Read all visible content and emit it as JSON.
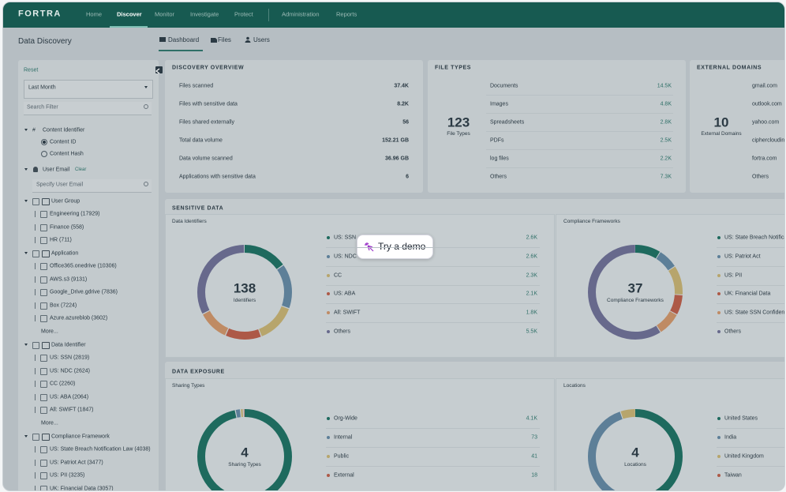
{
  "nav": {
    "brand": "FORTRA",
    "items": [
      "Home",
      "Discover",
      "Monitor",
      "Investigate",
      "Protect",
      "Administration",
      "Reports"
    ]
  },
  "page_title": "Data Discovery",
  "tabs": [
    "Dashboard",
    "Files",
    "Users"
  ],
  "sidebar": {
    "reset": "Reset",
    "period": "Last Month",
    "search_placeholder": "Search Filter",
    "content_identifier": {
      "title": "Content Identifier",
      "options": [
        "Content ID",
        "Content Hash"
      ]
    },
    "user_email": {
      "title": "User Email",
      "clear": "Clear",
      "placeholder": "Specify User Email"
    },
    "groups": [
      {
        "title": "User Group",
        "items": [
          "Engineering (17929)",
          "Finance (558)",
          "HR (711)"
        ]
      },
      {
        "title": "Application",
        "items": [
          "Office365.onedrive (10306)",
          "AWS.s3 (9131)",
          "Google_Drive.gdrive (7836)",
          "Box (7224)",
          "Azure.azureblob (3602)"
        ],
        "more": "More..."
      },
      {
        "title": "Data Identifier",
        "items": [
          "US: SSN (2819)",
          "US: NDC (2624)",
          "CC (2260)",
          "US: ABA (2064)",
          "All: SWIFT (1847)"
        ],
        "more": "More..."
      },
      {
        "title": "Compliance Framework",
        "items": [
          "US: State Breach Notification Law (4038)",
          "US: Patriot Act (3477)",
          "US: PII (3235)",
          "UK: Financial Data (3057)"
        ]
      }
    ]
  },
  "discovery_overview": {
    "title": "DISCOVERY OVERVIEW",
    "rows": [
      [
        "Files scanned",
        "37.4K"
      ],
      [
        "Files with sensitive data",
        "8.2K"
      ],
      [
        "Files shared externally",
        "56"
      ],
      [
        "Total data volume",
        "152.21 GB"
      ],
      [
        "Data volume scanned",
        "36.96 GB"
      ],
      [
        "Applications with sensitive data",
        "6"
      ]
    ]
  },
  "file_types": {
    "title": "FILE TYPES",
    "total": "123",
    "total_label": "File Types",
    "rows": [
      [
        "Documents",
        "14.5K"
      ],
      [
        "Images",
        "4.8K"
      ],
      [
        "Spreadsheets",
        "2.8K"
      ],
      [
        "PDFs",
        "2.5K"
      ],
      [
        "log files",
        "2.2K"
      ],
      [
        "Others",
        "7.3K"
      ]
    ]
  },
  "external_domains": {
    "title": "EXTERNAL DOMAINS",
    "total": "10",
    "total_label": "External Domains",
    "rows": [
      "gmail.com",
      "outlook.com",
      "yahoo.com",
      "ciphercloudin",
      "fortra.com",
      "Others"
    ]
  },
  "sensitive_data": {
    "title": "SENSITIVE DATA",
    "identifiers": {
      "title": "Data Identifiers",
      "total": "138",
      "total_label": "Identifiers",
      "items": [
        {
          "name": "US: SSN",
          "value": {
            "value": 2600,
            "label": "2.6K"
          },
          "color": "#1e6a5e"
        },
        {
          "name": "US: NDC",
          "value": {
            "value": 2600,
            "label": "2.6K"
          },
          "color": "#5d7f98"
        },
        {
          "name": "CC",
          "value": {
            "value": 2300,
            "label": "2.3K"
          },
          "color": "#b7a56c"
        },
        {
          "name": "US: ABA",
          "value": {
            "value": 2100,
            "label": "2.1K"
          },
          "color": "#ad5947"
        },
        {
          "name": "All: SWIFT",
          "value": {
            "value": 1800,
            "label": "1.8K"
          },
          "color": "#bf8b64"
        },
        {
          "name": "Others",
          "value": {
            "value": 5500,
            "label": "5.5K"
          },
          "color": "#67698c"
        }
      ]
    },
    "compliance": {
      "title": "Compliance Frameworks",
      "total": "37",
      "total_label": "Compliance Frameworks",
      "items": [
        {
          "name": "US: State Breach Notifica",
          "color": "#1e6a5e"
        },
        {
          "name": "US: Patriot Act",
          "color": "#5d7f98"
        },
        {
          "name": "US: PII",
          "color": "#b7a56c"
        },
        {
          "name": "UK: Financial Data",
          "color": "#ad5947"
        },
        {
          "name": "US: State SSN Confidenti",
          "color": "#bf8b64"
        },
        {
          "name": "Others",
          "color": "#67698c"
        }
      ]
    }
  },
  "data_exposure": {
    "title": "DATA EXPOSURE",
    "sharing": {
      "title": "Sharing Types",
      "total": "4",
      "total_label": "Sharing Types",
      "items": [
        {
          "name": "Org-Wide",
          "value": {
            "value": 4100,
            "label": "4.1K"
          },
          "color": "#1e6a5e"
        },
        {
          "name": "Internal",
          "value": 73,
          "color": "#5d7f98"
        },
        {
          "name": "Public",
          "value": 41,
          "color": "#b7a56c"
        },
        {
          "name": "External",
          "value": 18,
          "color": "#ad5947"
        }
      ]
    },
    "locations": {
      "title": "Locations",
      "total": "4",
      "total_label": "Locations",
      "items": [
        {
          "name": "United States",
          "color": "#1e6a5e"
        },
        {
          "name": "India",
          "color": "#5d7f98"
        },
        {
          "name": "United Kingdom",
          "color": "#b7a56c"
        },
        {
          "name": "Taiwan",
          "color": "#ad5947"
        }
      ]
    }
  },
  "demo_button": "Try a demo"
}
